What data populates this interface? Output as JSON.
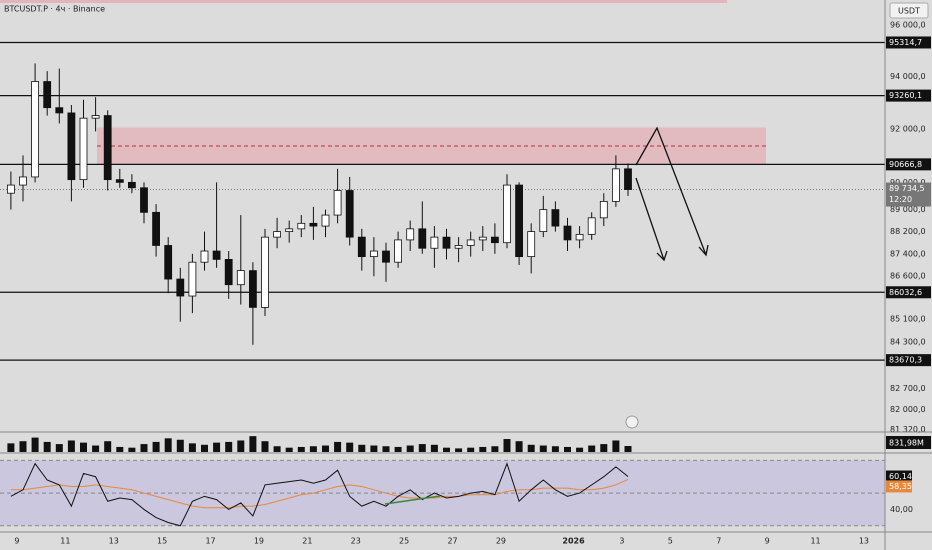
{
  "chart_data": {
    "type": "candlestick",
    "title": "BTCUSDT.P · 4ч · Binance",
    "currency": "USDT",
    "log": true,
    "x": [
      -0.25,
      0.25,
      0.75,
      1.25,
      1.75,
      2.25,
      2.75,
      3.25,
      3.75,
      4.25,
      4.75,
      5.25,
      5.75,
      6.25,
      6.75,
      7.25,
      7.75,
      8.25,
      8.75,
      9.25,
      9.75,
      10.25,
      10.75,
      11.25,
      11.75,
      12.25,
      12.75,
      13.25,
      13.75,
      14.25,
      14.75,
      15.25,
      15.75,
      16.25,
      16.75,
      17.25,
      17.75,
      18.25,
      18.75,
      19.25,
      19.75,
      20.25,
      20.75,
      21.25,
      21.75,
      22.25,
      22.75,
      23.25,
      23.75,
      24.25,
      24.75,
      25.25
    ],
    "open": [
      89600,
      89900,
      90200,
      93800,
      92800,
      92600,
      90100,
      92400,
      92500,
      90100,
      90000,
      89800,
      88900,
      87700,
      86500,
      85900,
      87100,
      87500,
      87200,
      86300,
      86800,
      85500,
      88000,
      88200,
      88300,
      88500,
      88400,
      88800,
      89700,
      88000,
      87300,
      87500,
      87100,
      87900,
      88300,
      87600,
      88000,
      87600,
      87700,
      87900,
      88000,
      87800,
      89900,
      87300,
      88200,
      89000,
      88400,
      87900,
      88100,
      88700,
      89300,
      90500
    ],
    "high": [
      90400,
      91000,
      94500,
      94200,
      94300,
      92900,
      93100,
      93200,
      92700,
      90500,
      90300,
      90000,
      89200,
      88000,
      86900,
      87400,
      88200,
      90000,
      87500,
      88800,
      87100,
      88300,
      88700,
      88600,
      88800,
      89100,
      89000,
      90500,
      90200,
      88300,
      88000,
      87800,
      88200,
      88600,
      89300,
      88400,
      88300,
      88000,
      88200,
      88400,
      88500,
      90300,
      90000,
      88500,
      89500,
      89300,
      88700,
      88400,
      88900,
      89600,
      91000,
      90700
    ],
    "low": [
      89000,
      89300,
      90000,
      92500,
      92200,
      89300,
      89800,
      91900,
      89700,
      89800,
      89600,
      88500,
      87300,
      86000,
      85000,
      85300,
      86800,
      86900,
      85800,
      85600,
      84200,
      85200,
      87600,
      87800,
      88000,
      87900,
      88000,
      88500,
      87700,
      86800,
      86600,
      86400,
      86900,
      87500,
      87400,
      86900,
      87200,
      87100,
      87300,
      87500,
      87400,
      87600,
      87000,
      86700,
      88000,
      88200,
      87500,
      87600,
      87900,
      88400,
      89100,
      89500
    ],
    "close": [
      89900,
      90200,
      93800,
      92800,
      92600,
      90100,
      92400,
      92500,
      90100,
      90000,
      89800,
      88900,
      87700,
      86500,
      85900,
      87100,
      87500,
      87200,
      86300,
      86800,
      85500,
      88000,
      88200,
      88300,
      88500,
      88400,
      88800,
      89700,
      88000,
      87300,
      87500,
      87100,
      87900,
      88300,
      87600,
      88000,
      87600,
      87700,
      87900,
      88000,
      87800,
      89900,
      87300,
      88200,
      89000,
      88400,
      87900,
      88100,
      88700,
      89300,
      90500,
      89734.5
    ],
    "xlim": [
      -0.7,
      35.87
    ],
    "ylim": [
      81240,
      96990
    ],
    "xticks": [
      {
        "value": 0,
        "label": "9"
      },
      {
        "value": 2,
        "label": "11"
      },
      {
        "value": 4,
        "label": "13"
      },
      {
        "value": 6,
        "label": "15"
      },
      {
        "value": 8,
        "label": "17"
      },
      {
        "value": 10,
        "label": "19"
      },
      {
        "value": 12,
        "label": "21"
      },
      {
        "value": 14,
        "label": "23"
      },
      {
        "value": 16,
        "label": "25"
      },
      {
        "value": 18,
        "label": "27"
      },
      {
        "value": 20,
        "label": "29"
      },
      {
        "value": 23,
        "label": "2026"
      },
      {
        "value": 25,
        "label": "3"
      },
      {
        "value": 27,
        "label": "5"
      },
      {
        "value": 29,
        "label": "7"
      },
      {
        "value": 31,
        "label": "9"
      },
      {
        "value": 33,
        "label": "11"
      },
      {
        "value": 35,
        "label": "13"
      }
    ],
    "yticks": [
      {
        "value": 96000,
        "label": "96 000,0"
      },
      {
        "value": 94000,
        "label": "94 000,0"
      },
      {
        "value": 92000,
        "label": "92 000,0"
      },
      {
        "value": 90000,
        "label": "90 000,0"
      },
      {
        "value": 89000,
        "label": "89 000,0"
      },
      {
        "value": 88200,
        "label": "88 200,0"
      },
      {
        "value": 87400,
        "label": "87 400,0"
      },
      {
        "value": 86600,
        "label": "86 600,0"
      },
      {
        "value": 85100,
        "label": "85 100,0"
      },
      {
        "value": 84300,
        "label": "84 300,0"
      },
      {
        "value": 82700,
        "label": "82 700,0"
      },
      {
        "value": 82000,
        "label": "82 000,0"
      },
      {
        "value": 81320,
        "label": "81 320,0"
      }
    ],
    "levels": [
      {
        "value": 95314.7,
        "label": "95314,7"
      },
      {
        "value": 93260.1,
        "label": "93260,1"
      },
      {
        "value": 90666.8,
        "label": "90666,8"
      },
      {
        "value": 86032.6,
        "label": "86032,6"
      },
      {
        "value": 83670.3,
        "label": "83670,3"
      }
    ],
    "zone": [
      90666.8,
      92050
    ],
    "zone_mid": 91350,
    "last_price": {
      "value": 89734.5,
      "label": "89 734,5"
    },
    "countdown": "12:20",
    "volume": [
      1200,
      1500,
      2000,
      1400,
      1100,
      1600,
      1300,
      900,
      1500,
      700,
      600,
      1100,
      1400,
      1900,
      1700,
      1200,
      1000,
      1300,
      1400,
      1600,
      2200,
      1500,
      800,
      600,
      700,
      800,
      900,
      1400,
      1300,
      1000,
      900,
      800,
      700,
      900,
      1100,
      1000,
      600,
      500,
      600,
      700,
      800,
      1800,
      1500,
      1000,
      900,
      800,
      700,
      600,
      900,
      1100,
      1600,
      831.98
    ],
    "volume_ylim": [
      0,
      2500
    ],
    "volume_label": "831,98M",
    "rsi": [
      48,
      52,
      68,
      58,
      55,
      42,
      62,
      60,
      45,
      47,
      46,
      40,
      35,
      32,
      30,
      45,
      48,
      46,
      40,
      44,
      36,
      55,
      56,
      57,
      58,
      56,
      58,
      64,
      48,
      42,
      45,
      42,
      48,
      52,
      46,
      50,
      47,
      48,
      50,
      51,
      49,
      68,
      45,
      52,
      58,
      52,
      48,
      50,
      55,
      60,
      66,
      60.14
    ],
    "rsi_ma": [
      52,
      52,
      53,
      54,
      55,
      54,
      54,
      55,
      54,
      53,
      52,
      50,
      48,
      46,
      44,
      42,
      41,
      41,
      41,
      42,
      42,
      43,
      45,
      47,
      49,
      50,
      52,
      54,
      55,
      54,
      52,
      50,
      48,
      47,
      47,
      47,
      48,
      48,
      49,
      49,
      49,
      51,
      52,
      52,
      53,
      53,
      53,
      52,
      52,
      53,
      55,
      58.35
    ],
    "rsi_labels": [
      "60,14",
      "58,35"
    ],
    "rsi_ylim": [
      26.8,
      73.9
    ],
    "rsi_bands": [
      70,
      50,
      30
    ],
    "rsi_yticks": [
      {
        "value": 40,
        "label": "40,00"
      }
    ]
  }
}
